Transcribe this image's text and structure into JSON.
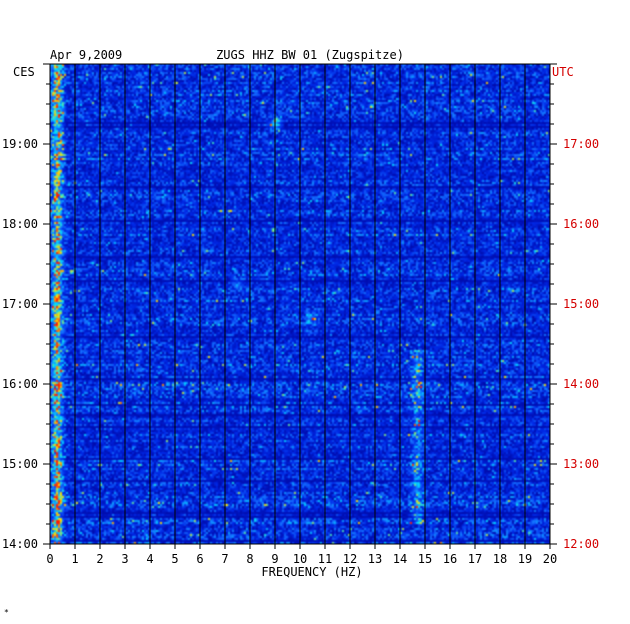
{
  "chart_data": {
    "type": "heatmap",
    "title": "ZUGS HHZ BW 01 (Zugspitze)",
    "date": "Apr 9,2009",
    "xlabel": "FREQUENCY (HZ)",
    "left_axis_label": "CES",
    "right_axis_label": "UTC",
    "xlim": [
      0,
      20
    ],
    "x_ticks": [
      "0",
      "1",
      "2",
      "3",
      "4",
      "5",
      "6",
      "7",
      "8",
      "9",
      "10",
      "11",
      "12",
      "13",
      "14",
      "15",
      "16",
      "17",
      "18",
      "19",
      "20"
    ],
    "left_time_range": [
      "14:00",
      "20:00"
    ],
    "left_ticks": [
      "19:00",
      "18:00",
      "17:00",
      "16:00",
      "15:00",
      "14:00"
    ],
    "right_ticks": [
      "17:00",
      "16:00",
      "15:00",
      "14:00",
      "13:00",
      "12:00"
    ],
    "grid": true,
    "colors": {
      "background_low": "#0000a8",
      "mid": "#1a6cff",
      "high": "#00e0ff",
      "peak": "#ffe000",
      "max": "#ff2000",
      "utc_text": "#d40000"
    },
    "hotspots": [
      {
        "freq_hz": 0.3,
        "time_from": "14:00",
        "time_to": "20:00",
        "intensity": "high"
      },
      {
        "freq_hz": 9.0,
        "time": "19:15",
        "intensity": "high"
      },
      {
        "freq_hz": 7.5,
        "time": "17:15",
        "intensity": "medium"
      },
      {
        "freq_hz": 10.5,
        "time": "16:50",
        "intensity": "medium"
      },
      {
        "freq_hz": 14.7,
        "time_from": "14:15",
        "time_to": "16:25",
        "intensity": "medium"
      }
    ]
  },
  "footer_mark": "*"
}
